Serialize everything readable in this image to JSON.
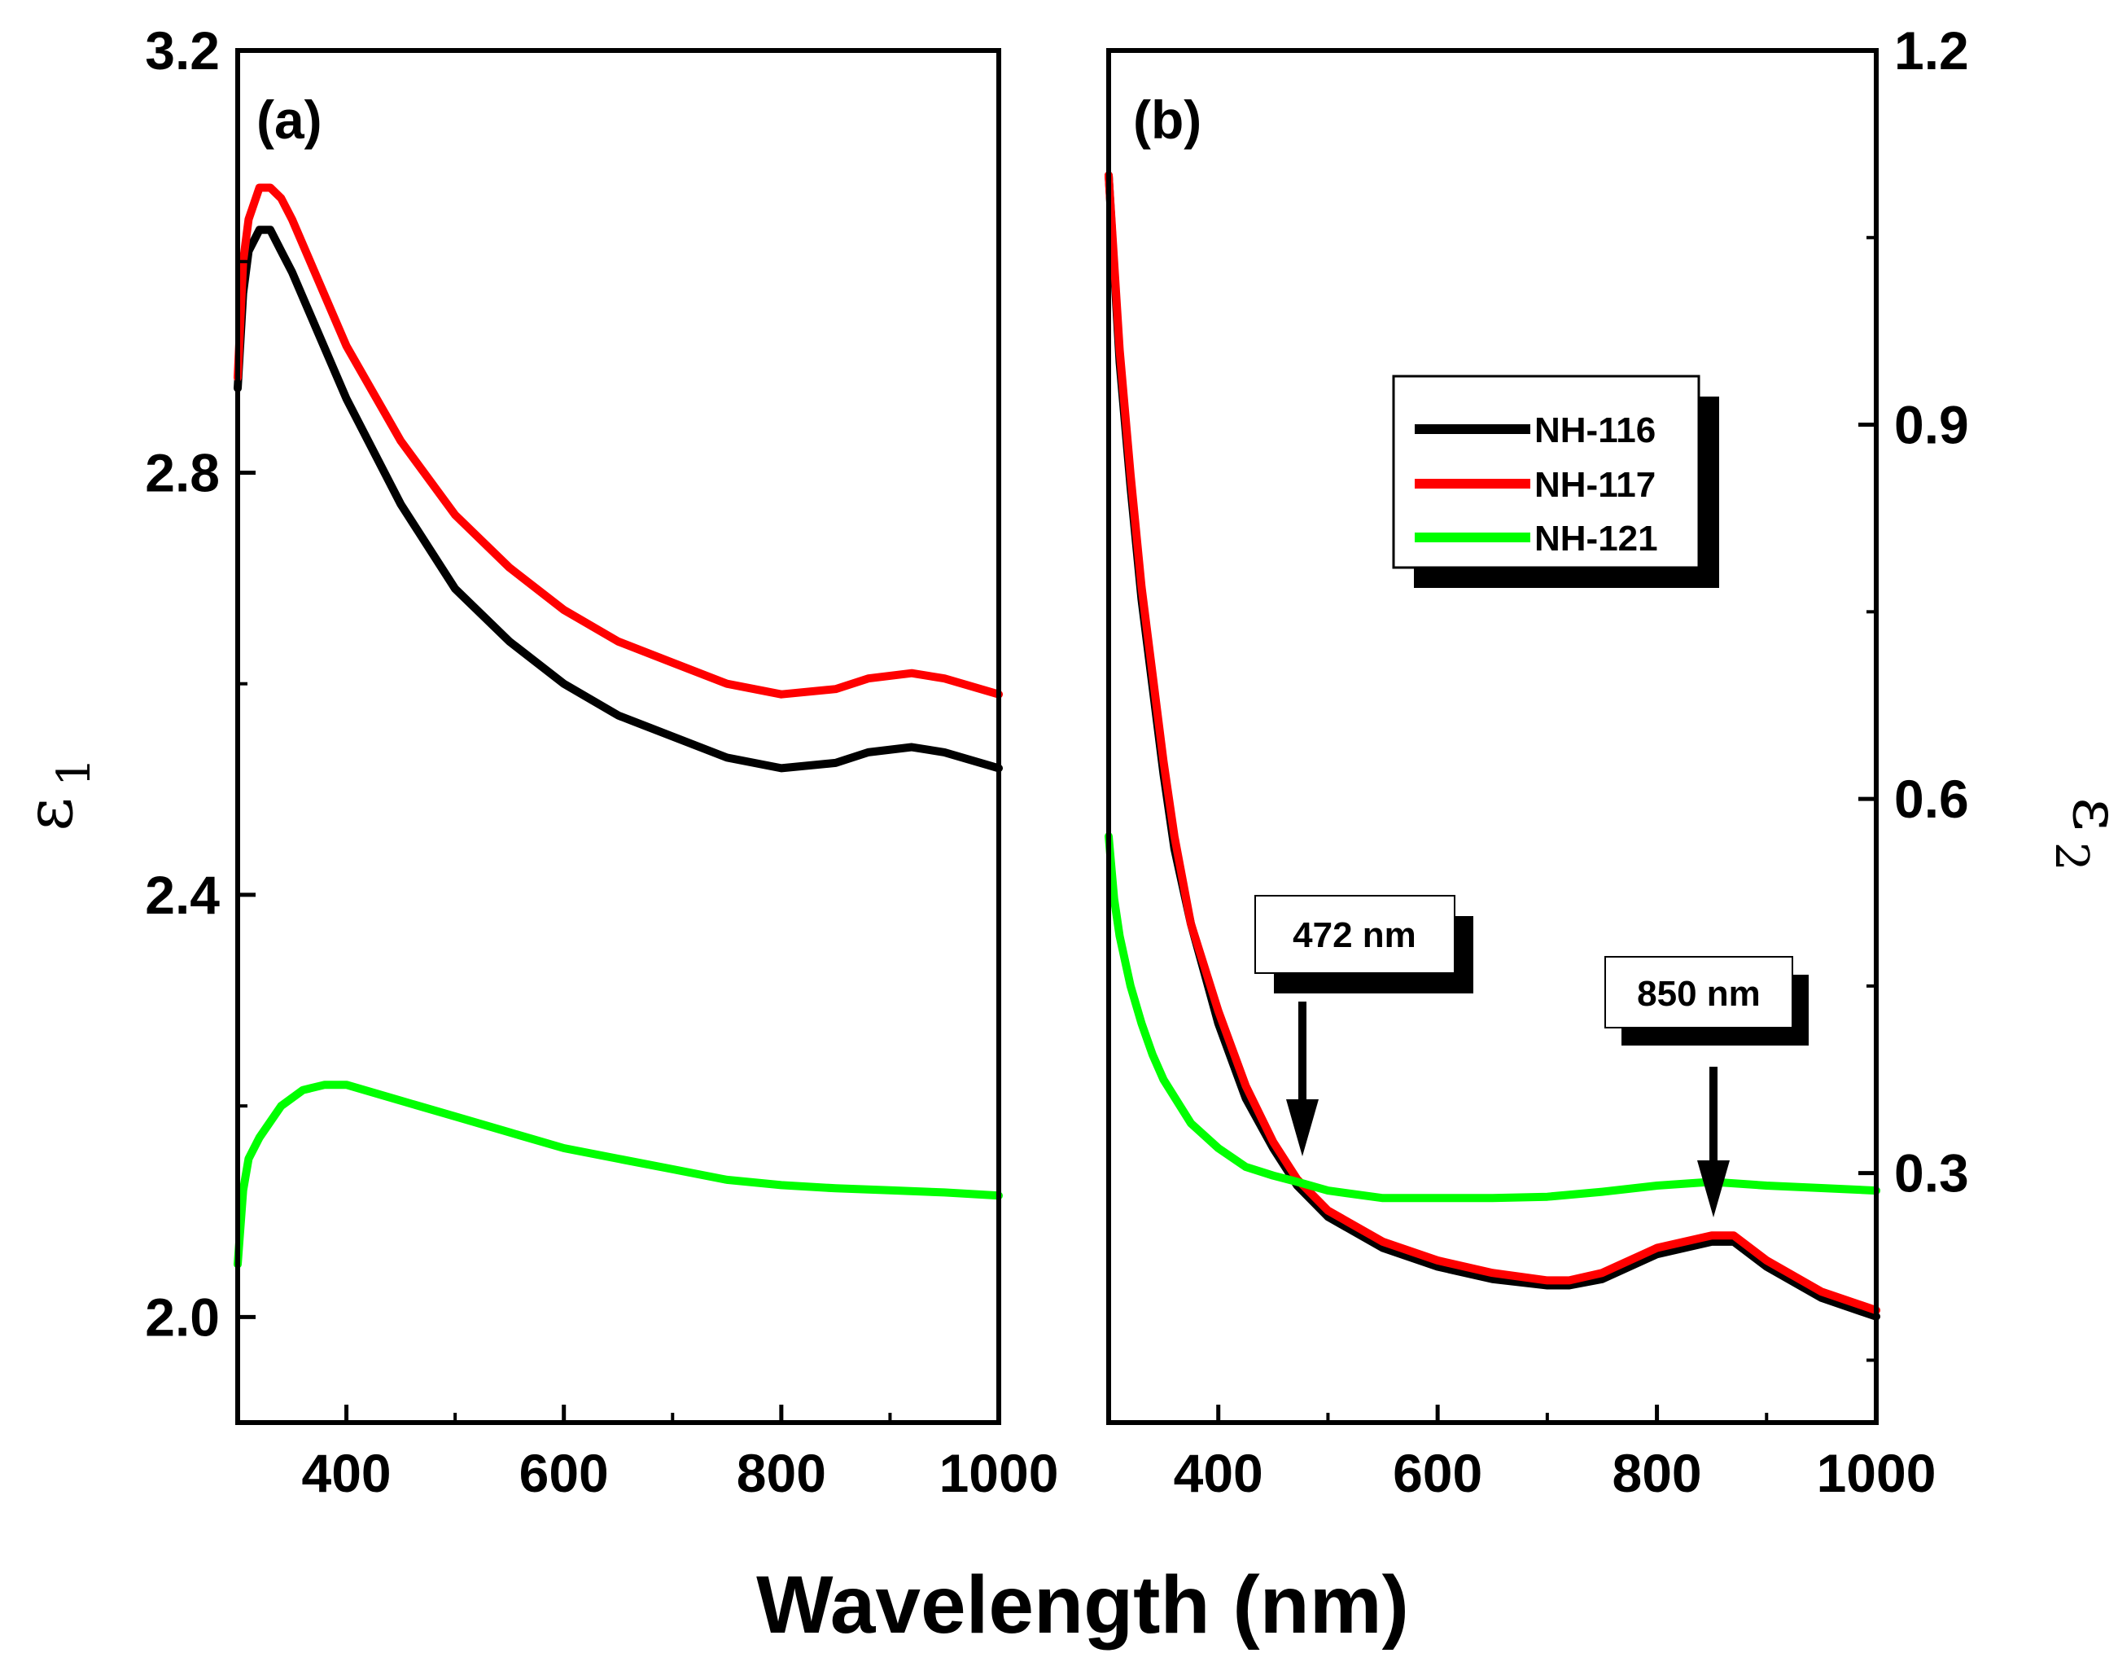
{
  "chart_data": [
    {
      "panel": "(a)",
      "type": "line",
      "title": "",
      "xlabel": "Wavelength (nm)",
      "ylabel": "ε",
      "ylabel_sub": "1",
      "xlim": [
        300,
        1000
      ],
      "ylim": [
        1.9,
        3.2
      ],
      "xticks": [
        400,
        600,
        800,
        1000
      ],
      "yticks": [
        2.0,
        2.4,
        2.8,
        3.2
      ],
      "ytick_labels": [
        "2.0",
        "2.4",
        "2.8",
        "3.2"
      ],
      "xtick_labels": [
        "400",
        "600",
        "800",
        "1000"
      ],
      "series": [
        {
          "name": "NH-116",
          "color": "#000000",
          "x": [
            300,
            305,
            310,
            320,
            330,
            340,
            350,
            375,
            400,
            450,
            500,
            550,
            600,
            650,
            700,
            750,
            800,
            850,
            880,
            920,
            950,
            1000
          ],
          "y": [
            2.88,
            2.97,
            3.01,
            3.03,
            3.03,
            3.01,
            2.99,
            2.93,
            2.87,
            2.77,
            2.69,
            2.64,
            2.6,
            2.57,
            2.55,
            2.53,
            2.52,
            2.525,
            2.535,
            2.54,
            2.535,
            2.52
          ]
        },
        {
          "name": "NH-117",
          "color": "#ff0000",
          "x": [
            300,
            305,
            310,
            320,
            330,
            340,
            350,
            375,
            400,
            450,
            500,
            550,
            600,
            650,
            700,
            750,
            800,
            850,
            880,
            920,
            950,
            1000
          ],
          "y": [
            2.89,
            3.0,
            3.04,
            3.07,
            3.07,
            3.06,
            3.04,
            2.98,
            2.92,
            2.83,
            2.76,
            2.71,
            2.67,
            2.64,
            2.62,
            2.6,
            2.59,
            2.595,
            2.605,
            2.61,
            2.605,
            2.59
          ]
        },
        {
          "name": "NH-121",
          "color": "#00ff00",
          "x": [
            300,
            305,
            310,
            320,
            340,
            360,
            380,
            400,
            450,
            500,
            550,
            600,
            650,
            700,
            750,
            800,
            850,
            900,
            950,
            1000
          ],
          "y": [
            2.05,
            2.12,
            2.15,
            2.17,
            2.2,
            2.215,
            2.22,
            2.22,
            2.205,
            2.19,
            2.175,
            2.16,
            2.15,
            2.14,
            2.13,
            2.125,
            2.122,
            2.12,
            2.118,
            2.115
          ]
        }
      ]
    },
    {
      "panel": "(b)",
      "type": "line",
      "title": "",
      "xlabel": "Wavelength (nm)",
      "ylabel": "ε",
      "ylabel_sub": "2",
      "xlim": [
        300,
        1000
      ],
      "ylim": [
        0.1,
        1.2
      ],
      "xticks": [
        400,
        600,
        800,
        1000
      ],
      "yticks": [
        0.3,
        0.6,
        0.9,
        1.2
      ],
      "ytick_labels": [
        "0.3",
        "0.6",
        "0.9",
        "1.2"
      ],
      "xtick_labels": [
        "400",
        "600",
        "800",
        "1000"
      ],
      "legend": [
        "NH-116",
        "NH-117",
        "NH-121"
      ],
      "annotations": [
        {
          "text": "472 nm",
          "x": 472,
          "y": 0.3
        },
        {
          "text": "850 nm",
          "x": 850,
          "y": 0.255
        }
      ],
      "series": [
        {
          "name": "NH-116",
          "color": "#000000",
          "x": [
            300,
            310,
            320,
            330,
            340,
            350,
            360,
            375,
            400,
            425,
            450,
            472,
            500,
            550,
            600,
            650,
            700,
            720,
            750,
            800,
            850,
            870,
            900,
            950,
            1000
          ],
          "y": [
            1.1,
            0.95,
            0.85,
            0.76,
            0.69,
            0.62,
            0.56,
            0.5,
            0.42,
            0.36,
            0.32,
            0.29,
            0.265,
            0.24,
            0.225,
            0.215,
            0.21,
            0.21,
            0.215,
            0.235,
            0.245,
            0.245,
            0.225,
            0.2,
            0.185
          ]
        },
        {
          "name": "NH-117",
          "color": "#ff0000",
          "x": [
            300,
            310,
            320,
            330,
            340,
            350,
            360,
            375,
            400,
            425,
            450,
            472,
            500,
            550,
            600,
            650,
            700,
            720,
            750,
            800,
            850,
            870,
            900,
            950,
            1000
          ],
          "y": [
            1.1,
            0.96,
            0.86,
            0.77,
            0.7,
            0.63,
            0.57,
            0.5,
            0.43,
            0.37,
            0.325,
            0.295,
            0.27,
            0.245,
            0.23,
            0.22,
            0.214,
            0.214,
            0.22,
            0.24,
            0.25,
            0.25,
            0.23,
            0.205,
            0.19
          ]
        },
        {
          "name": "NH-121",
          "color": "#00ff00",
          "x": [
            300,
            305,
            310,
            320,
            330,
            340,
            350,
            375,
            400,
            425,
            450,
            472,
            500,
            550,
            600,
            650,
            700,
            750,
            800,
            850,
            900,
            950,
            1000
          ],
          "y": [
            0.57,
            0.52,
            0.49,
            0.45,
            0.42,
            0.395,
            0.375,
            0.34,
            0.32,
            0.305,
            0.298,
            0.293,
            0.286,
            0.28,
            0.28,
            0.28,
            0.281,
            0.285,
            0.29,
            0.293,
            0.29,
            0.288,
            0.286
          ]
        }
      ]
    }
  ]
}
